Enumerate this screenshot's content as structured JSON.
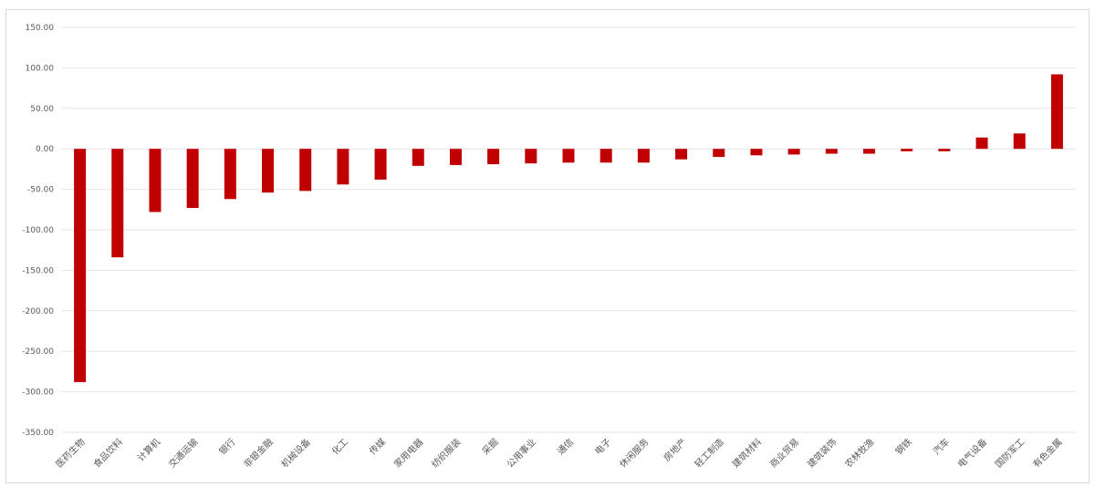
{
  "chart_data": {
    "type": "bar",
    "title": "",
    "xlabel": "",
    "ylabel": "",
    "ylim": [
      -350,
      150
    ],
    "yticks": [
      150,
      100,
      50,
      0,
      -50,
      -100,
      -150,
      -200,
      -250,
      -300,
      -350
    ],
    "ytick_labels": [
      "150.00",
      "100.00",
      "50.00",
      "0.00",
      "-50.00",
      "-100.00",
      "-150.00",
      "-200.00",
      "-250.00",
      "-300.00",
      "-350.00"
    ],
    "grid": true,
    "legend": "none",
    "bar_color": "#c00000",
    "grid_color": "#e6e6e6",
    "categories": [
      "医药生物",
      "食品饮料",
      "计算机",
      "交通运输",
      "银行",
      "非银金融",
      "机械设备",
      "化工",
      "传媒",
      "家用电器",
      "纺织服装",
      "采掘",
      "公用事业",
      "通信",
      "电子",
      "休闲服务",
      "房地产",
      "轻工制造",
      "建筑材料",
      "商业贸易",
      "建筑装饰",
      "农林牧渔",
      "钢铁",
      "汽车",
      "电气设备",
      "国防军工",
      "有色金属"
    ],
    "values": [
      -288,
      -134,
      -78,
      -73,
      -62,
      -54,
      -52,
      -44,
      -38,
      -21,
      -20,
      -19,
      -18,
      -17,
      -17,
      -17,
      -13,
      -10,
      -8,
      -7,
      -6,
      -6,
      -3,
      -3,
      14,
      19,
      92
    ]
  }
}
